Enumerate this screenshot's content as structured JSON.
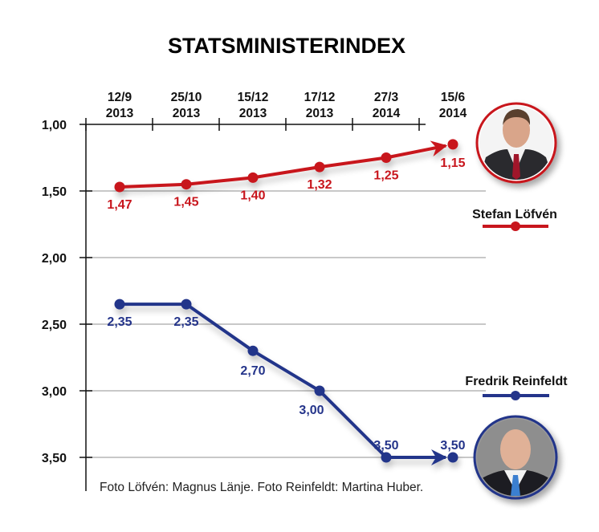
{
  "chart_data": {
    "type": "line",
    "title": "STATSMINISTERINDEX",
    "xlabel": "",
    "ylabel": "",
    "categories": [
      {
        "line1": "12/9",
        "line2": "2013"
      },
      {
        "line1": "25/10",
        "line2": "2013"
      },
      {
        "line1": "15/12",
        "line2": "2013"
      },
      {
        "line1": "17/12",
        "line2": "2013"
      },
      {
        "line1": "27/3",
        "line2": "2014"
      },
      {
        "line1": "15/6",
        "line2": "2014"
      }
    ],
    "yticks": [
      {
        "value": 1.0,
        "label": "1,00"
      },
      {
        "value": 1.5,
        "label": "1,50"
      },
      {
        "value": 2.0,
        "label": "2,00"
      },
      {
        "value": 2.5,
        "label": "2,50"
      },
      {
        "value": 3.0,
        "label": "3,00"
      },
      {
        "value": 3.5,
        "label": "3,50"
      }
    ],
    "ylim": [
      1.0,
      3.75
    ],
    "y_inverted": true,
    "grid": true,
    "series": [
      {
        "name": "Stefan Löfvén",
        "color": "#c8161d",
        "values": [
          1.47,
          1.45,
          1.4,
          1.32,
          1.25,
          1.15
        ],
        "labels": [
          "1,47",
          "1,45",
          "1,40",
          "1,32",
          "1,25",
          "1,15"
        ],
        "label_position": "below",
        "arrow_to_last": true
      },
      {
        "name": "Fredrik Reinfeldt",
        "color": "#24348a",
        "values": [
          2.35,
          2.35,
          2.7,
          3.0,
          3.5,
          3.5
        ],
        "labels": [
          "2,35",
          "2,35",
          "2,70",
          "3,00",
          "3,50",
          "3,50"
        ],
        "label_position": "mixed",
        "arrow_to_last": true
      }
    ],
    "legend_placement": "right",
    "annotation": "Foto Löfvén: Magnus Länje. Foto Reinfeldt: Martina Huber."
  }
}
